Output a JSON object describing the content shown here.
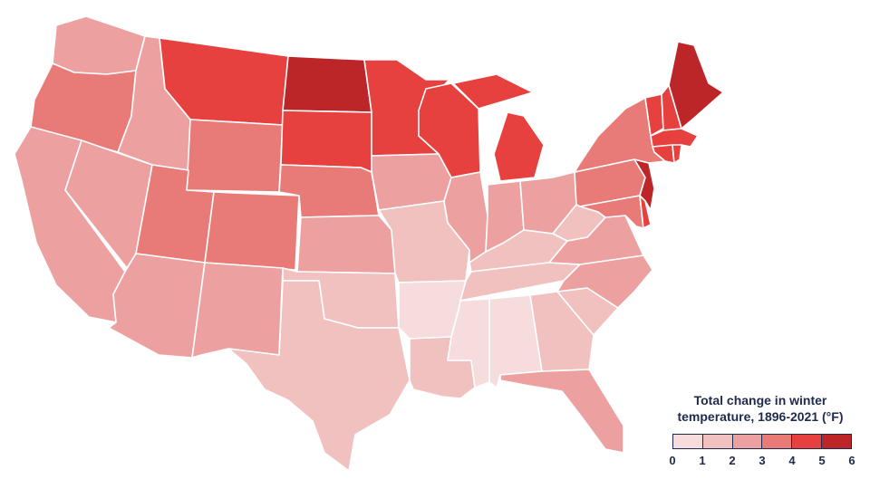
{
  "legend": {
    "title_line1": "Total change in winter",
    "title_line2": "temperature, 1896-2021 (°F)",
    "ticks": [
      "0",
      "1",
      "2",
      "3",
      "4",
      "5",
      "6"
    ],
    "colors": [
      "#f6dcdc",
      "#f1c1c0",
      "#eca1a0",
      "#e87b77",
      "#e6403f",
      "#bc2629"
    ]
  },
  "states": [
    {
      "id": "WA",
      "bin": 2
    },
    {
      "id": "OR",
      "bin": 3
    },
    {
      "id": "CA",
      "bin": 2
    },
    {
      "id": "NV",
      "bin": 2
    },
    {
      "id": "ID",
      "bin": 2
    },
    {
      "id": "MT",
      "bin": 4
    },
    {
      "id": "WY",
      "bin": 3
    },
    {
      "id": "UT",
      "bin": 3
    },
    {
      "id": "AZ",
      "bin": 2
    },
    {
      "id": "CO",
      "bin": 3
    },
    {
      "id": "NM",
      "bin": 2
    },
    {
      "id": "ND",
      "bin": 5
    },
    {
      "id": "SD",
      "bin": 4
    },
    {
      "id": "NE",
      "bin": 3
    },
    {
      "id": "KS",
      "bin": 2
    },
    {
      "id": "OK",
      "bin": 1
    },
    {
      "id": "TX",
      "bin": 1
    },
    {
      "id": "MN",
      "bin": 4
    },
    {
      "id": "IA",
      "bin": 2
    },
    {
      "id": "MO",
      "bin": 1
    },
    {
      "id": "AR",
      "bin": 0
    },
    {
      "id": "LA",
      "bin": 1
    },
    {
      "id": "WI",
      "bin": 4
    },
    {
      "id": "IL",
      "bin": 2
    },
    {
      "id": "MI",
      "bin": 4
    },
    {
      "id": "IN",
      "bin": 2
    },
    {
      "id": "OH",
      "bin": 2
    },
    {
      "id": "KY",
      "bin": 1
    },
    {
      "id": "TN",
      "bin": 1
    },
    {
      "id": "MS",
      "bin": 0
    },
    {
      "id": "AL",
      "bin": 0
    },
    {
      "id": "GA",
      "bin": 1
    },
    {
      "id": "FL",
      "bin": 2
    },
    {
      "id": "SC",
      "bin": 1
    },
    {
      "id": "NC",
      "bin": 2
    },
    {
      "id": "VA",
      "bin": 2
    },
    {
      "id": "WV",
      "bin": 1
    },
    {
      "id": "PA",
      "bin": 3
    },
    {
      "id": "NY",
      "bin": 3
    },
    {
      "id": "VT",
      "bin": 4
    },
    {
      "id": "NH",
      "bin": 4
    },
    {
      "id": "ME",
      "bin": 5
    },
    {
      "id": "MA",
      "bin": 4
    },
    {
      "id": "CT",
      "bin": 4
    },
    {
      "id": "RI",
      "bin": 4
    },
    {
      "id": "NJ",
      "bin": 5
    },
    {
      "id": "DE",
      "bin": 4
    },
    {
      "id": "MD",
      "bin": 3
    }
  ]
}
